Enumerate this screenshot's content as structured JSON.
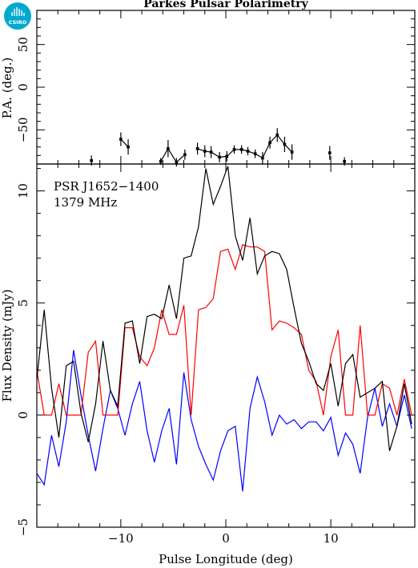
{
  "logo_text": "CSIRO",
  "colors": {
    "total": "#000000",
    "linear": "#ff0000",
    "circular": "#0000ff",
    "logo": "#00a9ce"
  },
  "chart_data": [
    {
      "type": "scatter",
      "panel": "position-angle",
      "title": "Parkes Pulsar Polarimetry",
      "xlabel": "",
      "ylabel": "P.A. (deg.)",
      "xlim": [
        -18,
        18
      ],
      "ylim": [
        -90,
        90
      ],
      "yticks": [
        -50,
        0,
        50
      ],
      "ytick_labels": [
        "−50",
        "0",
        "50"
      ],
      "points": [
        {
          "x": -12.8,
          "y": -86,
          "err": 6
        },
        {
          "x": -10.0,
          "y": -61,
          "err": 8
        },
        {
          "x": -9.3,
          "y": -70,
          "err": 9
        },
        {
          "x": -6.2,
          "y": -87,
          "err": 4
        },
        {
          "x": -5.5,
          "y": -72,
          "err": 10
        },
        {
          "x": -4.7,
          "y": -88,
          "err": 5
        },
        {
          "x": -3.9,
          "y": -79,
          "err": 6
        },
        {
          "x": -2.7,
          "y": -72,
          "err": 7
        },
        {
          "x": -2.0,
          "y": -75,
          "err": 7
        },
        {
          "x": -1.4,
          "y": -76,
          "err": 7
        },
        {
          "x": -0.6,
          "y": -82,
          "err": 6
        },
        {
          "x": 0.1,
          "y": -81,
          "err": 6
        },
        {
          "x": 0.8,
          "y": -73,
          "err": 5
        },
        {
          "x": 1.5,
          "y": -73,
          "err": 5
        },
        {
          "x": 2.1,
          "y": -75,
          "err": 5
        },
        {
          "x": 2.8,
          "y": -78,
          "err": 5
        },
        {
          "x": 3.5,
          "y": -83,
          "err": 7
        },
        {
          "x": 4.2,
          "y": -65,
          "err": 7
        },
        {
          "x": 4.9,
          "y": -56,
          "err": 8
        },
        {
          "x": 5.6,
          "y": -67,
          "err": 9
        },
        {
          "x": 6.3,
          "y": -76,
          "err": 9
        },
        {
          "x": 9.9,
          "y": -77,
          "err": 8
        },
        {
          "x": 11.3,
          "y": -87,
          "err": 5
        }
      ]
    },
    {
      "type": "line",
      "panel": "flux-profile",
      "annotations": [
        "PSR J1652−1400",
        "1379 MHz"
      ],
      "xlabel": "Pulse Longitude (deg)",
      "ylabel": "Flux Density (mJy)",
      "xlim": [
        -18,
        18
      ],
      "ylim": [
        -5,
        11.2
      ],
      "xticks": [
        -10,
        0,
        10
      ],
      "xtick_labels": [
        "−10",
        "0",
        "10"
      ],
      "yticks": [
        -5,
        0,
        5,
        10
      ],
      "ytick_labels": [
        "−5",
        "0",
        "5",
        "10"
      ],
      "x": [
        -18.0,
        -17.3,
        -16.6,
        -15.9,
        -15.2,
        -14.5,
        -13.8,
        -13.1,
        -12.4,
        -11.7,
        -11.0,
        -10.3,
        -9.6,
        -8.9,
        -8.2,
        -7.5,
        -6.8,
        -6.1,
        -5.4,
        -4.7,
        -4.0,
        -3.3,
        -2.6,
        -1.9,
        -1.2,
        -0.5,
        0.2,
        0.9,
        1.6,
        2.3,
        3.0,
        3.7,
        4.4,
        5.1,
        5.8,
        6.5,
        7.2,
        7.9,
        8.6,
        9.3,
        10.0,
        10.7,
        11.4,
        12.1,
        12.8,
        13.5,
        14.2,
        14.9,
        15.6,
        16.3,
        17.0,
        17.7
      ],
      "series": [
        {
          "name": "",
          "color": "#000000",
          "values": [
            1.6,
            4.7,
            1.2,
            -1.0,
            2.2,
            2.4,
            0.1,
            -1.2,
            0.5,
            3.3,
            1.1,
            0.4,
            4.1,
            4.2,
            2.3,
            4.4,
            4.5,
            4.3,
            5.8,
            4.3,
            7.0,
            7.1,
            8.4,
            11.0,
            9.4,
            10.2,
            11.1,
            8.0,
            6.9,
            8.8,
            6.3,
            7.1,
            7.3,
            7.2,
            6.5,
            4.8,
            3.2,
            2.4,
            1.4,
            1.1,
            2.3,
            0.4,
            2.3,
            2.7,
            0.8,
            1.0,
            1.2,
            1.5,
            -1.6,
            -0.5,
            1.4,
            -0.4
          ]
        },
        {
          "name": "",
          "color": "#ff0000",
          "values": [
            2.0,
            0.0,
            0.0,
            1.4,
            0.0,
            0.0,
            0.0,
            2.8,
            3.3,
            0.0,
            0.0,
            0.0,
            3.9,
            3.9,
            2.6,
            2.2,
            3.0,
            4.7,
            3.6,
            3.6,
            4.9,
            0.0,
            4.7,
            4.8,
            5.2,
            7.3,
            7.4,
            6.5,
            7.6,
            7.5,
            7.5,
            7.3,
            3.8,
            4.2,
            4.1,
            3.9,
            3.6,
            2.0,
            1.5,
            0.0,
            2.6,
            3.8,
            0.0,
            0.0,
            4.0,
            0.0,
            0.0,
            1.4,
            1.2,
            0.0,
            1.6,
            0.0
          ]
        },
        {
          "name": "",
          "color": "#0000ff",
          "values": [
            -2.6,
            -3.1,
            -0.9,
            -2.3,
            -0.3,
            2.9,
            0.9,
            -0.9,
            -2.5,
            -0.6,
            1.1,
            0.3,
            -0.9,
            0.5,
            1.5,
            -0.7,
            -2.1,
            -0.7,
            0.3,
            -2.2,
            1.9,
            -0.2,
            -1.4,
            -2.2,
            -2.9,
            -1.6,
            -0.7,
            -0.5,
            -3.4,
            0.3,
            1.7,
            0.6,
            -0.9,
            0.0,
            -0.4,
            -0.2,
            -0.6,
            -0.3,
            -0.3,
            -0.7,
            -0.1,
            -1.8,
            -0.8,
            -1.3,
            -2.6,
            -0.1,
            1.2,
            -0.5,
            0.5,
            -0.5,
            0.9,
            -0.6
          ]
        }
      ]
    }
  ]
}
